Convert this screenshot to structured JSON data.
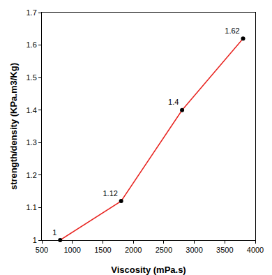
{
  "chart_data": {
    "type": "line",
    "x_label": "Viscosity (mPa.s)",
    "y_label": "strength/density (KPa.m3/Kg)",
    "x": [
      800,
      1800,
      2800,
      3800
    ],
    "values": [
      1,
      1.12,
      1.4,
      1.62
    ],
    "color": "#e8231f",
    "marker": "circle",
    "data_labels": true,
    "xlim": [
      500,
      4000
    ],
    "xticks": [
      500,
      1000,
      1500,
      2000,
      2500,
      3000,
      3500,
      4000
    ],
    "ylim": [
      1,
      1.7
    ],
    "yticks": [
      1,
      1.1,
      1.2,
      1.3,
      1.4,
      1.5,
      1.6,
      1.7
    ],
    "grid": false
  }
}
